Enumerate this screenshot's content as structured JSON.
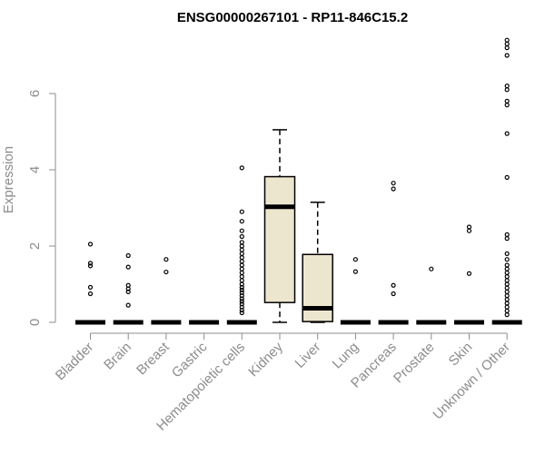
{
  "chart_data": {
    "type": "box",
    "title": "ENSG00000267101 - RP11-846C15.2",
    "ylabel": "Expression",
    "xlabel": "",
    "ylim": [
      0,
      7.5
    ],
    "yticks": [
      0,
      2,
      4,
      6
    ],
    "grid": false,
    "box_fill": "#ede6cf",
    "categories": [
      "Bladder",
      "Brain",
      "Breast",
      "Gastric",
      "Hematopoietic cells",
      "Kidney",
      "Liver",
      "Lung",
      "Pancreas",
      "Prostate",
      "Skin",
      "Unknown / Other"
    ],
    "boxes": [
      {
        "q1": 0,
        "median": 0,
        "q3": 0,
        "whisker_low": 0,
        "whisker_high": 0,
        "outliers": [
          2.05,
          1.55,
          1.48,
          0.92,
          0.75
        ]
      },
      {
        "q1": 0,
        "median": 0,
        "q3": 0,
        "whisker_low": 0,
        "whisker_high": 0,
        "outliers": [
          1.75,
          1.45,
          0.97,
          0.88,
          0.8,
          0.45
        ]
      },
      {
        "q1": 0,
        "median": 0,
        "q3": 0,
        "whisker_low": 0,
        "whisker_high": 0,
        "outliers": [
          1.65,
          1.32
        ]
      },
      {
        "q1": 0,
        "median": 0,
        "q3": 0,
        "whisker_low": 0,
        "whisker_high": 0,
        "outliers": []
      },
      {
        "q1": 0,
        "median": 0,
        "q3": 0,
        "whisker_low": 0,
        "whisker_high": 0,
        "outliers": [
          4.05,
          2.9,
          2.65,
          2.4,
          2.25,
          2.1,
          2.0,
          1.9,
          1.8,
          1.7,
          1.6,
          1.5,
          1.4,
          1.3,
          1.2,
          1.1,
          1.0,
          0.92,
          0.85,
          0.78,
          0.7,
          0.62,
          0.55,
          0.48,
          0.4,
          0.32,
          0.25
        ]
      },
      {
        "q1": 0.52,
        "median": 3.03,
        "q3": 3.82,
        "whisker_low": 0,
        "whisker_high": 5.05,
        "outliers": []
      },
      {
        "q1": 0.02,
        "median": 0.37,
        "q3": 1.78,
        "whisker_low": 0,
        "whisker_high": 3.15,
        "outliers": []
      },
      {
        "q1": 0,
        "median": 0,
        "q3": 0,
        "whisker_low": 0,
        "whisker_high": 0,
        "outliers": [
          1.65,
          1.33
        ]
      },
      {
        "q1": 0,
        "median": 0,
        "q3": 0,
        "whisker_low": 0,
        "whisker_high": 0,
        "outliers": [
          3.65,
          3.5,
          0.97,
          0.75
        ]
      },
      {
        "q1": 0,
        "median": 0,
        "q3": 0,
        "whisker_low": 0,
        "whisker_high": 0,
        "outliers": [
          1.4
        ]
      },
      {
        "q1": 0,
        "median": 0,
        "q3": 0,
        "whisker_low": 0,
        "whisker_high": 0,
        "outliers": [
          2.5,
          2.4,
          1.28
        ]
      },
      {
        "q1": 0,
        "median": 0,
        "q3": 0,
        "whisker_low": 0,
        "whisker_high": 0,
        "outliers": [
          7.4,
          7.3,
          7.2,
          7.0,
          6.2,
          6.1,
          5.8,
          5.7,
          4.95,
          3.8,
          2.3,
          2.2,
          1.8,
          1.65,
          1.5,
          1.4,
          1.3,
          1.2,
          1.1,
          1.0,
          0.9,
          0.8,
          0.7,
          0.6,
          0.5,
          0.4,
          0.3,
          0.2
        ]
      }
    ]
  }
}
